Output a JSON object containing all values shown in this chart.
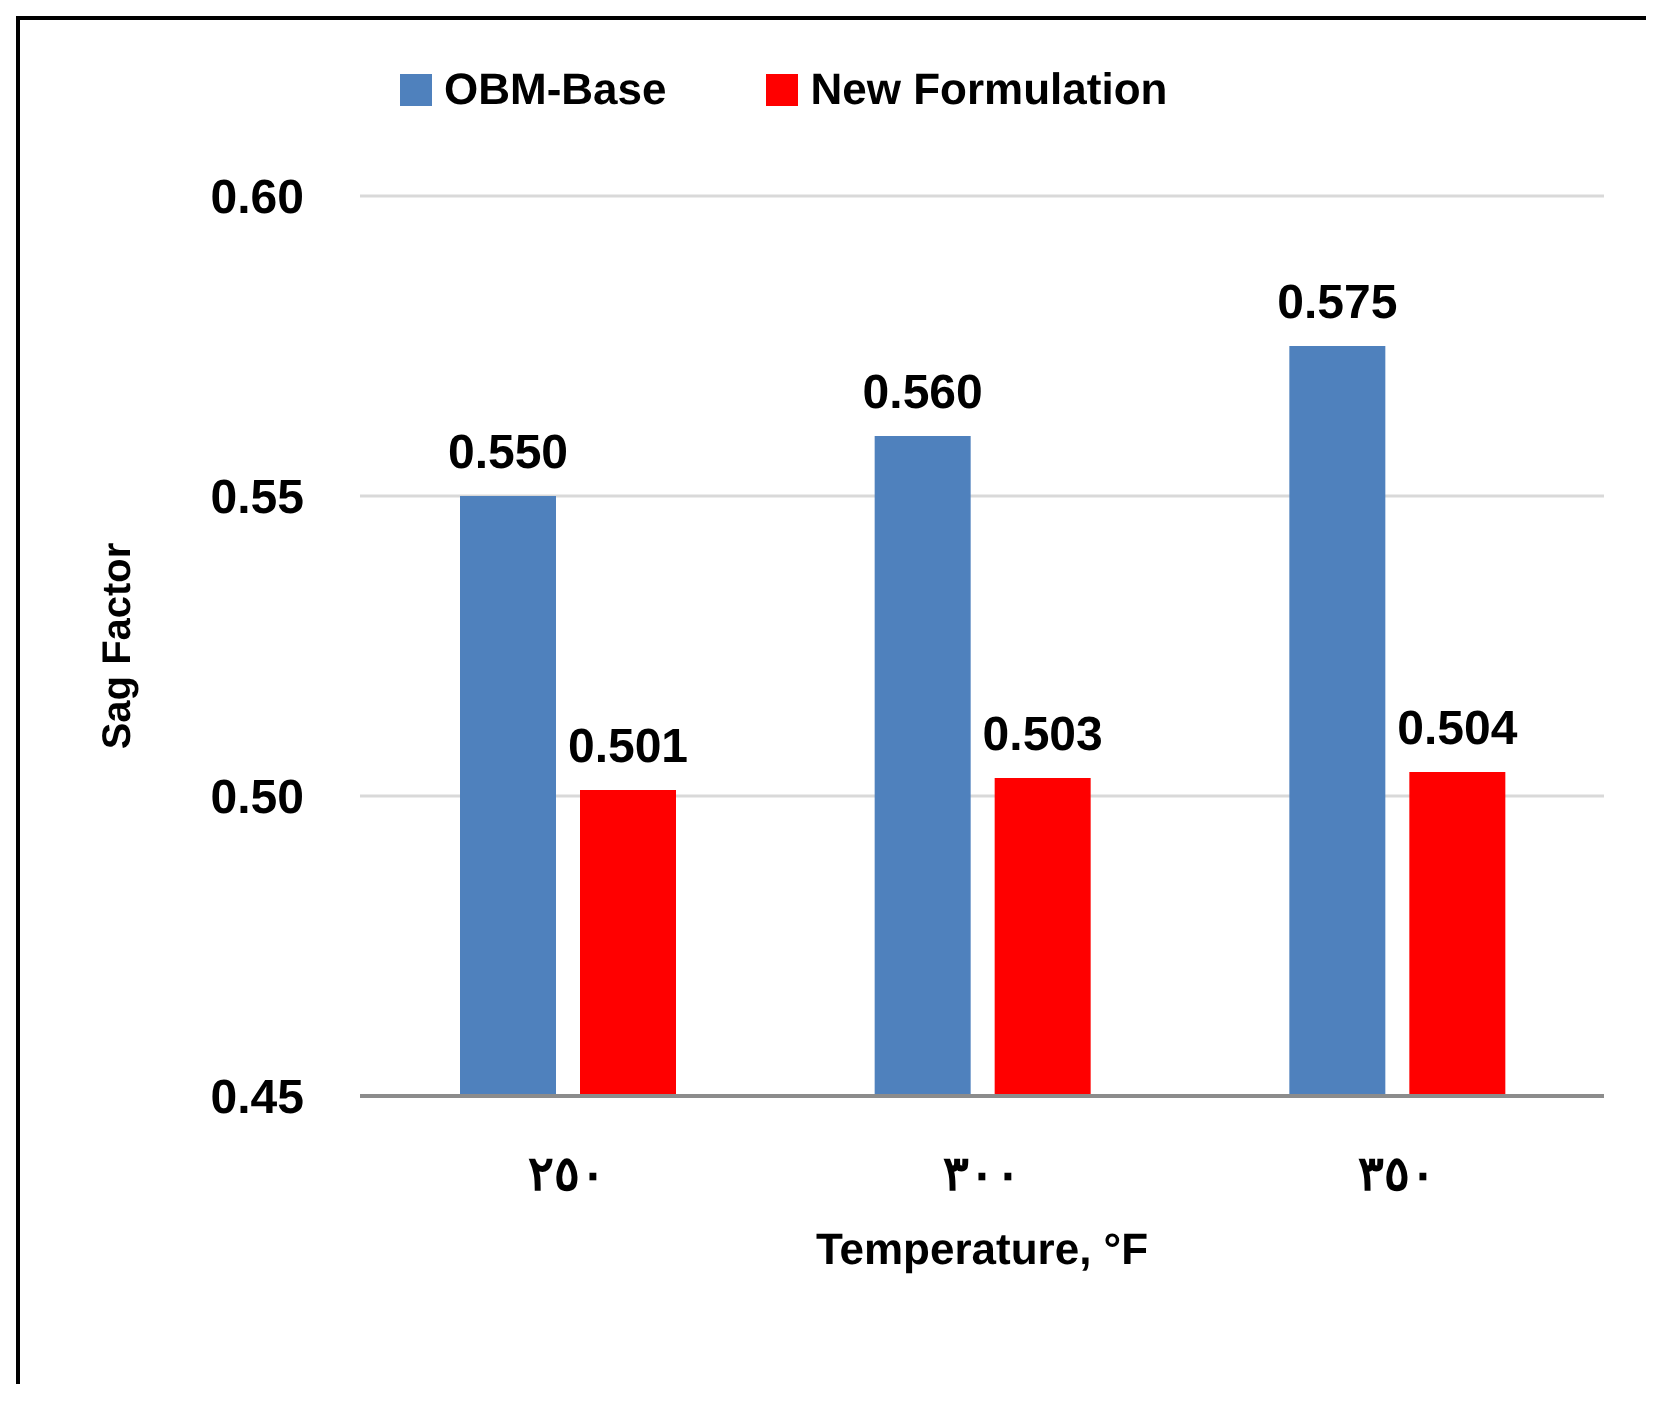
{
  "chart_data": {
    "type": "bar",
    "xlabel": "Temperature, °F",
    "ylabel": "Sag Factor",
    "categories": [
      "٢٥٠",
      "٣٠٠",
      "٣٥٠"
    ],
    "series": [
      {
        "name": "OBM-Base",
        "color": "#4f81bd",
        "values": [
          0.55,
          0.56,
          0.575
        ],
        "value_labels": [
          "0.550",
          "0.560",
          "0.575"
        ]
      },
      {
        "name": "New Formulation",
        "color": "#ff0000",
        "values": [
          0.501,
          0.503,
          0.504
        ],
        "value_labels": [
          "0.501",
          "0.503",
          "0.504"
        ]
      }
    ],
    "ylim": [
      0.45,
      0.6
    ],
    "yticks": [
      {
        "value": 0.45,
        "label": "0.45"
      },
      {
        "value": 0.5,
        "label": "0.50"
      },
      {
        "value": 0.55,
        "label": "0.55"
      },
      {
        "value": 0.6,
        "label": "0.60"
      }
    ],
    "grid": "y",
    "legend": "top"
  }
}
